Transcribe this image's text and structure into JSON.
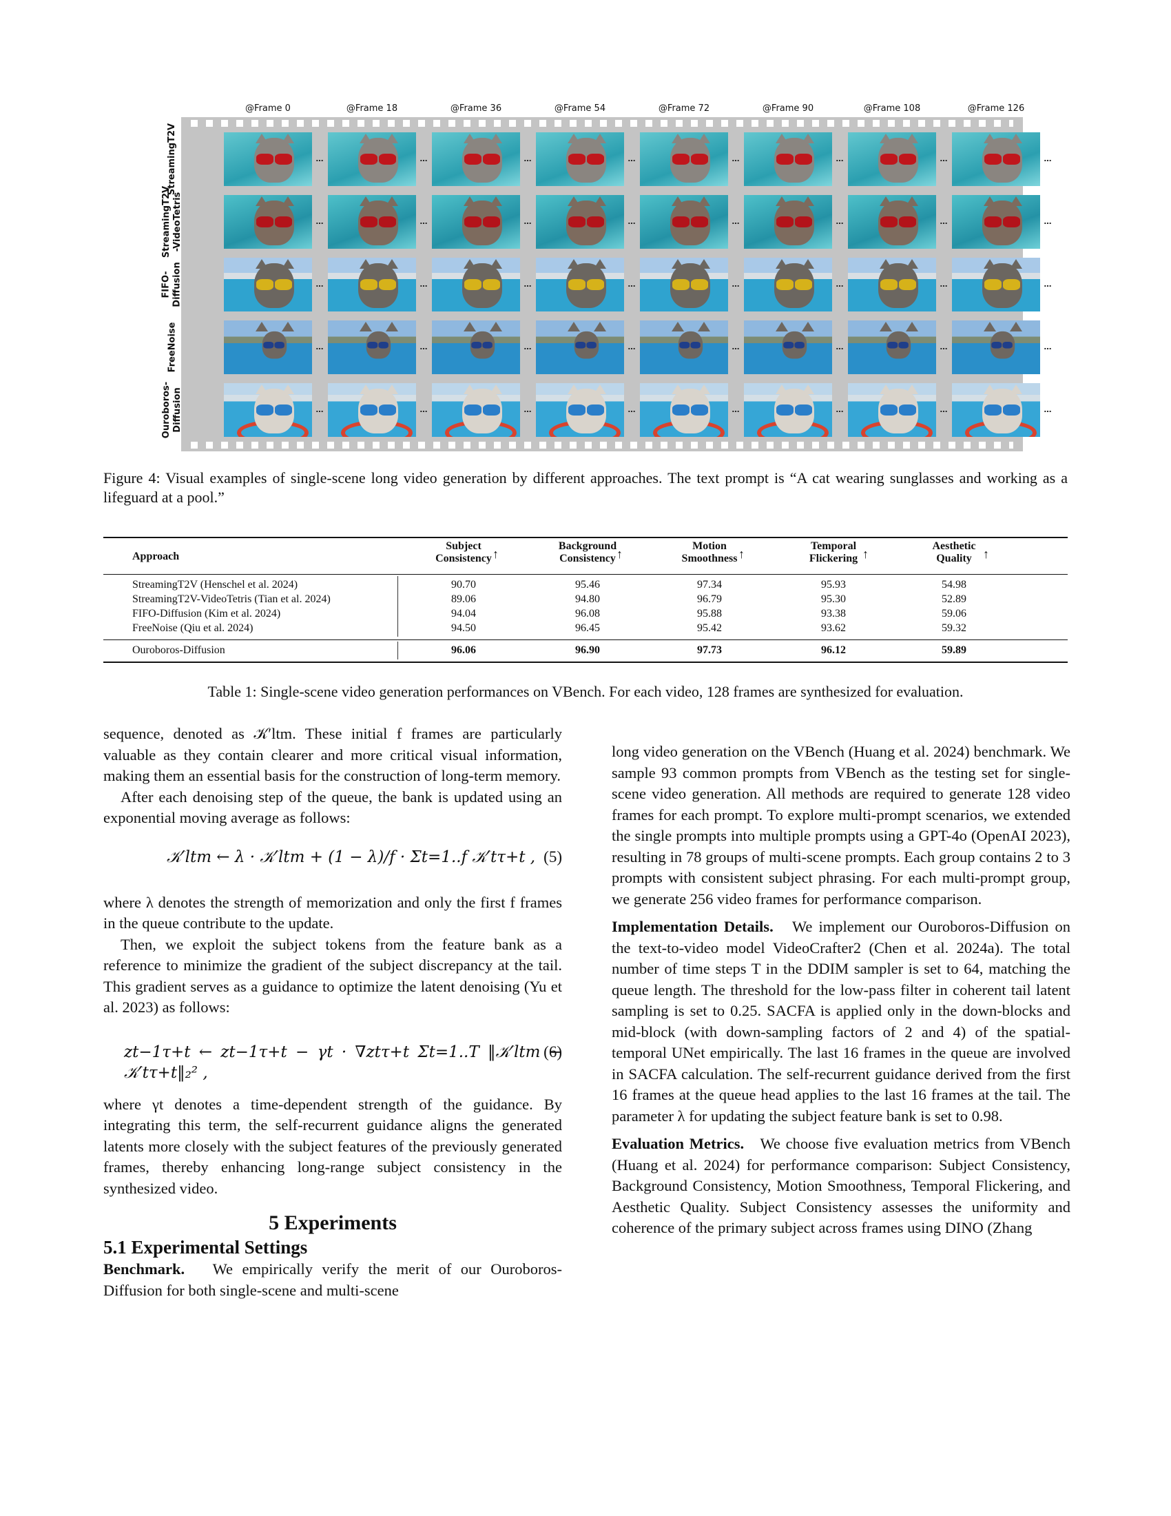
{
  "figure": {
    "frame_labels": [
      "@Frame 0",
      "@Frame 18",
      "@Frame 36",
      "@Frame 54",
      "@Frame 72",
      "@Frame 90",
      "@Frame 108",
      "@Frame 126"
    ],
    "row_labels": [
      "StreamingT2V",
      "StreamingT2V\n-VideoTetris",
      "FIFO-\nDiffusion",
      "FreeNoise",
      "Ouroboros-\nDiffusion"
    ],
    "ellipsis": "…",
    "caption": "Figure 4: Visual examples of single-scene long video generation by different approaches. The text prompt is “A cat wearing sunglasses and working as a lifeguard at a pool.”"
  },
  "table": {
    "headers": [
      {
        "line1": "Approach",
        "line2": ""
      },
      {
        "line1": "Subject",
        "line2": "Consistency"
      },
      {
        "line1": "Background",
        "line2": "Consistency"
      },
      {
        "line1": "Motion",
        "line2": "Smoothness"
      },
      {
        "line1": "Temporal",
        "line2": "Flickering"
      },
      {
        "line1": "Aesthetic",
        "line2": "Quality"
      }
    ],
    "arrow": "↑",
    "rows": [
      {
        "approach": "StreamingT2V (Henschel et al. 2024)",
        "values": [
          "90.70",
          "95.46",
          "97.34",
          "95.93",
          "54.98"
        ]
      },
      {
        "approach": "StreamingT2V-VideoTetris (Tian et al. 2024)",
        "values": [
          "89.06",
          "94.80",
          "96.79",
          "95.30",
          "52.89"
        ]
      },
      {
        "approach": "FIFO-Diffusion (Kim et al. 2024)",
        "values": [
          "94.04",
          "96.08",
          "95.88",
          "93.38",
          "59.06"
        ]
      },
      {
        "approach": "FreeNoise (Qiu et al. 2024)",
        "values": [
          "94.50",
          "96.45",
          "95.42",
          "93.62",
          "59.32"
        ]
      }
    ],
    "best_row": {
      "approach": "Ouroboros-Diffusion",
      "values": [
        "96.06",
        "96.90",
        "97.73",
        "96.12",
        "59.89"
      ]
    },
    "caption": "Table 1: Single-scene video generation performances on VBench. For each video, 128 frames are synthesized for evaluation."
  },
  "left_column": {
    "p1": "sequence, denoted as 𝒦′ltm. These initial f frames are particularly valuable as they contain clearer and more critical visual information, making them an essential basis for the construction of long-term memory.",
    "p2": "After each denoising step of the queue, the bank is updated using an exponential moving average as follows:",
    "eq5": "𝒦′ltm ← λ · 𝒦′ltm + (1 − λ)/f · Σt=1..f 𝒦′tτ+t ,",
    "eq5_num": "(5)",
    "p3": "where λ denotes the strength of memorization and only the first f frames in the queue contribute to the update.",
    "p4": "Then, we exploit the subject tokens from the feature bank as a reference to minimize the gradient of the subject discrepancy at the tail. This gradient serves as a guidance to optimize the latent denoising (Yu et al. 2023) as follows:",
    "eq6": "zt−1τ+t ← zt−1τ+t − γt · ∇ztτ+t Σt=1..T ‖𝒦′ltm − 𝒦′tτ+t‖₂² ,",
    "eq6_num": "(6)",
    "p5": "where γt denotes a time-dependent strength of the guidance. By integrating this term, the self-recurrent guidance aligns the generated latents more closely with the subject features of the previously generated frames, thereby enhancing long-range subject consistency in the synthesized video.",
    "section": "5    Experiments",
    "subsection": "5.1    Experimental Settings",
    "benchmark_head": "Benchmark.",
    "benchmark_text": "We empirically verify the merit of our Ouroboros-Diffusion for both single-scene and multi-scene"
  },
  "right_column": {
    "p1": "long video generation on the VBench (Huang et al. 2024) benchmark. We sample 93 common prompts from VBench as the testing set for single-scene video generation. All methods are required to generate 128 video frames for each prompt. To explore multi-prompt scenarios, we extended the single prompts into multiple prompts using a GPT-4o (OpenAI 2023), resulting in 78 groups of multi-scene prompts. Each group contains 2 to 3 prompts with consistent subject phrasing. For each multi-prompt group, we generate 256 video frames for performance comparison.",
    "impl_head": "Implementation Details.",
    "impl_text": "We implement our Ouroboros-Diffusion on the text-to-video model VideoCrafter2 (Chen et al. 2024a). The total number of time steps T in the DDIM sampler is set to 64, matching the queue length. The threshold for the low-pass filter in coherent tail latent sampling is set to 0.25. SACFA is applied only in the down-blocks and mid-block (with down-sampling factors of 2 and 4) of the spatial-temporal UNet empirically. The last 16 frames in the queue are involved in SACFA calculation. The self-recurrent guidance derived from the first 16 frames at the queue head applies to the last 16 frames at the tail. The parameter λ for updating the subject feature bank is set to 0.98.",
    "eval_head": "Evaluation Metrics.",
    "eval_text": "We choose five evaluation metrics from VBench (Huang et al. 2024) for performance comparison: Subject Consistency, Background Consistency, Motion Smoothness, Temporal Flickering, and Aesthetic Quality. Subject Consistency assesses the uniformity and coherence of the primary subject across frames using DINO (Zhang"
  }
}
